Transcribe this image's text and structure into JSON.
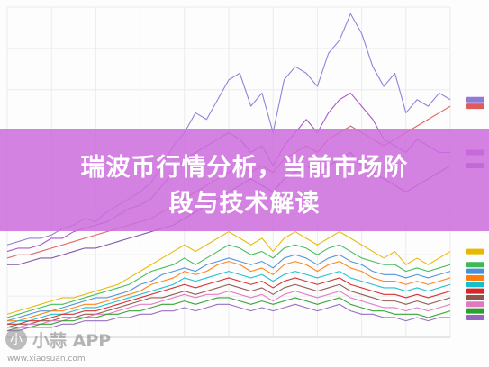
{
  "banner": {
    "line1": "瑞波币行情分析，当前市场阶",
    "line2": "段与技术解读",
    "color": "#cd6edc"
  },
  "watermark": {
    "logo_glyph": "小",
    "text": "小蒜 APP",
    "url": "www.xiaosuan.com"
  },
  "chart_data": {
    "type": "line",
    "title": "",
    "xlabel": "",
    "ylabel": "",
    "grid": true,
    "legend": "right",
    "x": [
      0,
      1,
      2,
      3,
      4,
      5,
      6,
      7,
      8,
      9,
      10,
      11,
      12,
      13,
      14,
      15,
      16,
      17,
      18,
      19,
      20,
      21,
      22,
      23,
      24,
      25,
      26,
      27,
      28,
      29,
      30,
      31,
      32,
      33,
      34,
      35,
      36,
      37,
      38,
      39,
      40
    ],
    "series": [
      {
        "color": "#8f7ad6",
        "values": [
          0.28,
          0.29,
          0.3,
          0.3,
          0.31,
          0.33,
          0.34,
          0.36,
          0.35,
          0.38,
          0.4,
          0.42,
          0.44,
          0.47,
          0.52,
          0.58,
          0.62,
          0.68,
          0.66,
          0.72,
          0.78,
          0.8,
          0.7,
          0.74,
          0.62,
          0.78,
          0.82,
          0.8,
          0.76,
          0.86,
          0.9,
          0.98,
          0.92,
          0.82,
          0.76,
          0.8,
          0.68,
          0.72,
          0.7,
          0.74,
          0.72
        ]
      },
      {
        "color": "#a64fc8",
        "values": [
          0.26,
          0.27,
          0.27,
          0.28,
          0.3,
          0.3,
          0.32,
          0.33,
          0.34,
          0.35,
          0.37,
          0.39,
          0.4,
          0.42,
          0.46,
          0.5,
          0.54,
          0.56,
          0.58,
          0.6,
          0.62,
          0.6,
          0.56,
          0.58,
          0.52,
          0.58,
          0.62,
          0.66,
          0.62,
          0.68,
          0.72,
          0.74,
          0.7,
          0.66,
          0.6,
          0.58,
          0.56,
          0.6,
          0.58,
          0.56,
          0.56
        ]
      },
      {
        "color": "#e05c5c",
        "values": [
          0.24,
          0.25,
          0.25,
          0.26,
          0.27,
          0.28,
          0.29,
          0.3,
          0.31,
          0.32,
          0.33,
          0.34,
          0.35,
          0.36,
          0.38,
          0.4,
          0.42,
          0.44,
          0.46,
          0.48,
          0.5,
          0.52,
          0.5,
          0.52,
          0.5,
          0.54,
          0.56,
          0.58,
          0.56,
          0.6,
          0.62,
          0.64,
          0.62,
          0.6,
          0.58,
          0.6,
          0.62,
          0.64,
          0.66,
          0.68,
          0.7
        ]
      },
      {
        "color": "#7b4fa0",
        "values": [
          0.22,
          0.22,
          0.23,
          0.24,
          0.24,
          0.25,
          0.26,
          0.27,
          0.27,
          0.28,
          0.29,
          0.3,
          0.31,
          0.32,
          0.33,
          0.34,
          0.36,
          0.38,
          0.4,
          0.42,
          0.44,
          0.46,
          0.48,
          0.46,
          0.44,
          0.48,
          0.5,
          0.52,
          0.5,
          0.52,
          0.54,
          0.56,
          0.52,
          0.5,
          0.48,
          0.46,
          0.44,
          0.46,
          0.48,
          0.5,
          0.52
        ]
      },
      {
        "color": "#e6b800",
        "values": [
          0.07,
          0.08,
          0.09,
          0.1,
          0.11,
          0.12,
          0.12,
          0.13,
          0.14,
          0.15,
          0.16,
          0.18,
          0.2,
          0.22,
          0.24,
          0.26,
          0.28,
          0.26,
          0.28,
          0.3,
          0.32,
          0.3,
          0.28,
          0.3,
          0.26,
          0.3,
          0.32,
          0.3,
          0.28,
          0.3,
          0.32,
          0.3,
          0.28,
          0.26,
          0.24,
          0.26,
          0.22,
          0.24,
          0.22,
          0.24,
          0.26
        ]
      },
      {
        "color": "#3cba54",
        "values": [
          0.06,
          0.07,
          0.08,
          0.09,
          0.1,
          0.1,
          0.11,
          0.12,
          0.13,
          0.14,
          0.15,
          0.16,
          0.18,
          0.2,
          0.21,
          0.22,
          0.24,
          0.22,
          0.24,
          0.26,
          0.28,
          0.27,
          0.25,
          0.26,
          0.24,
          0.27,
          0.28,
          0.27,
          0.25,
          0.27,
          0.28,
          0.26,
          0.24,
          0.23,
          0.22,
          0.22,
          0.2,
          0.21,
          0.2,
          0.21,
          0.22
        ]
      },
      {
        "color": "#4a90d9",
        "values": [
          0.05,
          0.06,
          0.07,
          0.08,
          0.08,
          0.09,
          0.1,
          0.11,
          0.12,
          0.12,
          0.13,
          0.14,
          0.16,
          0.17,
          0.19,
          0.2,
          0.21,
          0.2,
          0.22,
          0.23,
          0.24,
          0.23,
          0.22,
          0.23,
          0.21,
          0.24,
          0.25,
          0.24,
          0.22,
          0.24,
          0.25,
          0.23,
          0.22,
          0.2,
          0.19,
          0.19,
          0.18,
          0.19,
          0.18,
          0.19,
          0.2
        ]
      },
      {
        "color": "#ff7f0e",
        "values": [
          0.05,
          0.05,
          0.06,
          0.07,
          0.08,
          0.08,
          0.09,
          0.1,
          0.1,
          0.11,
          0.12,
          0.13,
          0.14,
          0.16,
          0.17,
          0.18,
          0.2,
          0.19,
          0.2,
          0.22,
          0.23,
          0.22,
          0.2,
          0.21,
          0.19,
          0.22,
          0.23,
          0.22,
          0.2,
          0.22,
          0.23,
          0.21,
          0.2,
          0.18,
          0.17,
          0.17,
          0.16,
          0.17,
          0.16,
          0.17,
          0.18
        ]
      },
      {
        "color": "#17becf",
        "values": [
          0.04,
          0.05,
          0.05,
          0.06,
          0.07,
          0.07,
          0.08,
          0.09,
          0.09,
          0.1,
          0.11,
          0.12,
          0.13,
          0.14,
          0.15,
          0.16,
          0.18,
          0.17,
          0.18,
          0.19,
          0.2,
          0.19,
          0.18,
          0.19,
          0.17,
          0.19,
          0.2,
          0.19,
          0.18,
          0.19,
          0.2,
          0.18,
          0.17,
          0.16,
          0.15,
          0.15,
          0.14,
          0.15,
          0.14,
          0.15,
          0.16
        ]
      },
      {
        "color": "#d62728",
        "values": [
          0.04,
          0.04,
          0.05,
          0.05,
          0.06,
          0.07,
          0.07,
          0.08,
          0.08,
          0.09,
          0.1,
          0.11,
          0.12,
          0.13,
          0.14,
          0.15,
          0.16,
          0.15,
          0.16,
          0.17,
          0.18,
          0.17,
          0.16,
          0.17,
          0.15,
          0.17,
          0.18,
          0.17,
          0.16,
          0.17,
          0.18,
          0.16,
          0.15,
          0.14,
          0.13,
          0.13,
          0.12,
          0.13,
          0.12,
          0.13,
          0.14
        ]
      },
      {
        "color": "#8c564b",
        "values": [
          0.03,
          0.04,
          0.04,
          0.05,
          0.05,
          0.06,
          0.06,
          0.07,
          0.07,
          0.08,
          0.09,
          0.1,
          0.11,
          0.12,
          0.12,
          0.13,
          0.14,
          0.13,
          0.14,
          0.15,
          0.16,
          0.15,
          0.14,
          0.15,
          0.13,
          0.15,
          0.16,
          0.15,
          0.14,
          0.15,
          0.16,
          0.14,
          0.13,
          0.12,
          0.11,
          0.11,
          0.1,
          0.11,
          0.1,
          0.11,
          0.12
        ]
      },
      {
        "color": "#e377c2",
        "values": [
          0.03,
          0.03,
          0.04,
          0.04,
          0.05,
          0.05,
          0.06,
          0.06,
          0.07,
          0.07,
          0.08,
          0.09,
          0.1,
          0.1,
          0.11,
          0.12,
          0.13,
          0.12,
          0.13,
          0.13,
          0.14,
          0.13,
          0.12,
          0.13,
          0.11,
          0.13,
          0.14,
          0.13,
          0.12,
          0.13,
          0.14,
          0.12,
          0.11,
          0.1,
          0.09,
          0.09,
          0.08,
          0.09,
          0.08,
          0.09,
          0.1
        ]
      },
      {
        "color": "#2ca02c",
        "values": [
          0.02,
          0.03,
          0.03,
          0.04,
          0.04,
          0.05,
          0.05,
          0.06,
          0.06,
          0.07,
          0.07,
          0.08,
          0.08,
          0.09,
          0.1,
          0.1,
          0.11,
          0.1,
          0.11,
          0.12,
          0.12,
          0.11,
          0.1,
          0.11,
          0.1,
          0.11,
          0.12,
          0.11,
          0.1,
          0.11,
          0.12,
          0.1,
          0.09,
          0.08,
          0.08,
          0.07,
          0.07,
          0.07,
          0.06,
          0.07,
          0.08
        ]
      },
      {
        "color": "#9467bd",
        "values": [
          0.02,
          0.02,
          0.03,
          0.03,
          0.03,
          0.04,
          0.04,
          0.05,
          0.05,
          0.05,
          0.06,
          0.06,
          0.07,
          0.07,
          0.08,
          0.08,
          0.09,
          0.08,
          0.09,
          0.1,
          0.1,
          0.09,
          0.08,
          0.09,
          0.08,
          0.09,
          0.1,
          0.09,
          0.08,
          0.09,
          0.1,
          0.08,
          0.07,
          0.07,
          0.06,
          0.06,
          0.05,
          0.06,
          0.05,
          0.06,
          0.06
        ]
      }
    ],
    "ylim": [
      0,
      1
    ],
    "xlim": [
      0,
      40
    ]
  }
}
